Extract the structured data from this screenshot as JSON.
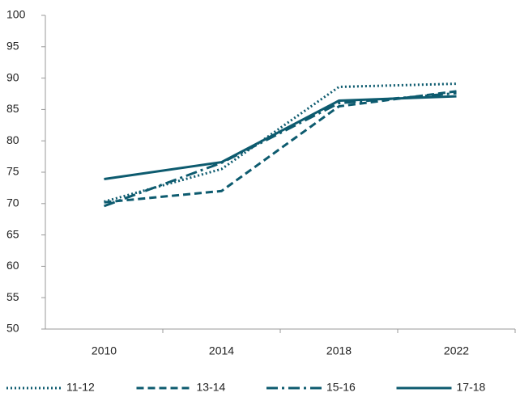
{
  "chart_data": {
    "type": "line",
    "categories": [
      "2010",
      "2014",
      "2018",
      "2022"
    ],
    "series": [
      {
        "name": "11-12",
        "color": "#0d5b6f",
        "line_style": "dotted",
        "values": [
          70.3,
          75.5,
          88.6,
          89.1
        ]
      },
      {
        "name": "13-14",
        "color": "#0d5b6f",
        "line_style": "dashed",
        "values": [
          70.2,
          72.0,
          85.5,
          87.9
        ]
      },
      {
        "name": "15-16",
        "color": "#0d5b6f",
        "line_style": "dashdot",
        "values": [
          69.6,
          76.5,
          86.0,
          87.6
        ]
      },
      {
        "name": "17-18",
        "color": "#0d5b6f",
        "line_style": "solid",
        "values": [
          73.9,
          76.6,
          86.4,
          87.1
        ]
      }
    ],
    "ylim": [
      50,
      100
    ],
    "yticks": [
      50,
      55,
      60,
      65,
      70,
      75,
      80,
      85,
      90,
      95,
      100
    ],
    "grid": false,
    "legend": "bottom"
  }
}
